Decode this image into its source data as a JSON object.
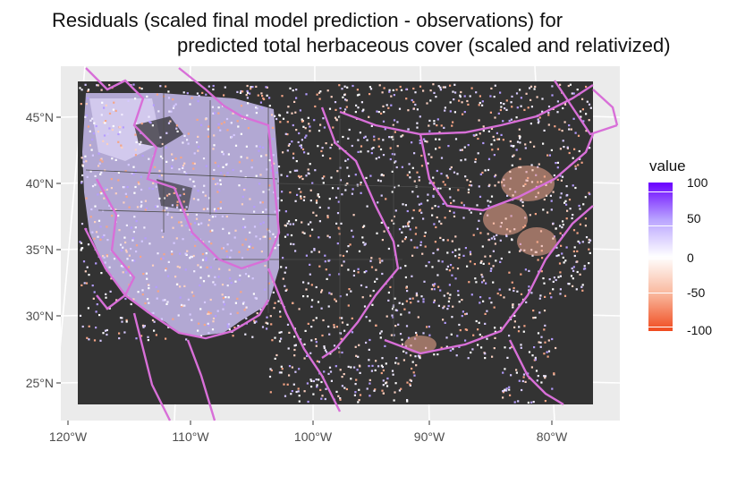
{
  "title_line1": "Residuals (scaled final model prediction - observations) for",
  "title_line2": "predicted total herbaceous cover (scaled and relativized)",
  "y_ticks": [
    "45°N",
    "40°N",
    "35°N",
    "30°N",
    "25°N"
  ],
  "x_ticks": [
    "120°W",
    "110°W",
    "100°W",
    "90°W",
    "80°W"
  ],
  "legend": {
    "title": "value",
    "labels": [
      "100",
      "50",
      "0",
      "-50",
      "-100"
    ],
    "colors": {
      "high": "#6a00ff",
      "mid": "#ffffff",
      "low": "#f04a1e"
    }
  },
  "colors": {
    "panel_background": "#ebebeb",
    "raster_background": "#333333",
    "ecoregion_outline": "#d86fd8",
    "state_border": "#555555"
  }
}
